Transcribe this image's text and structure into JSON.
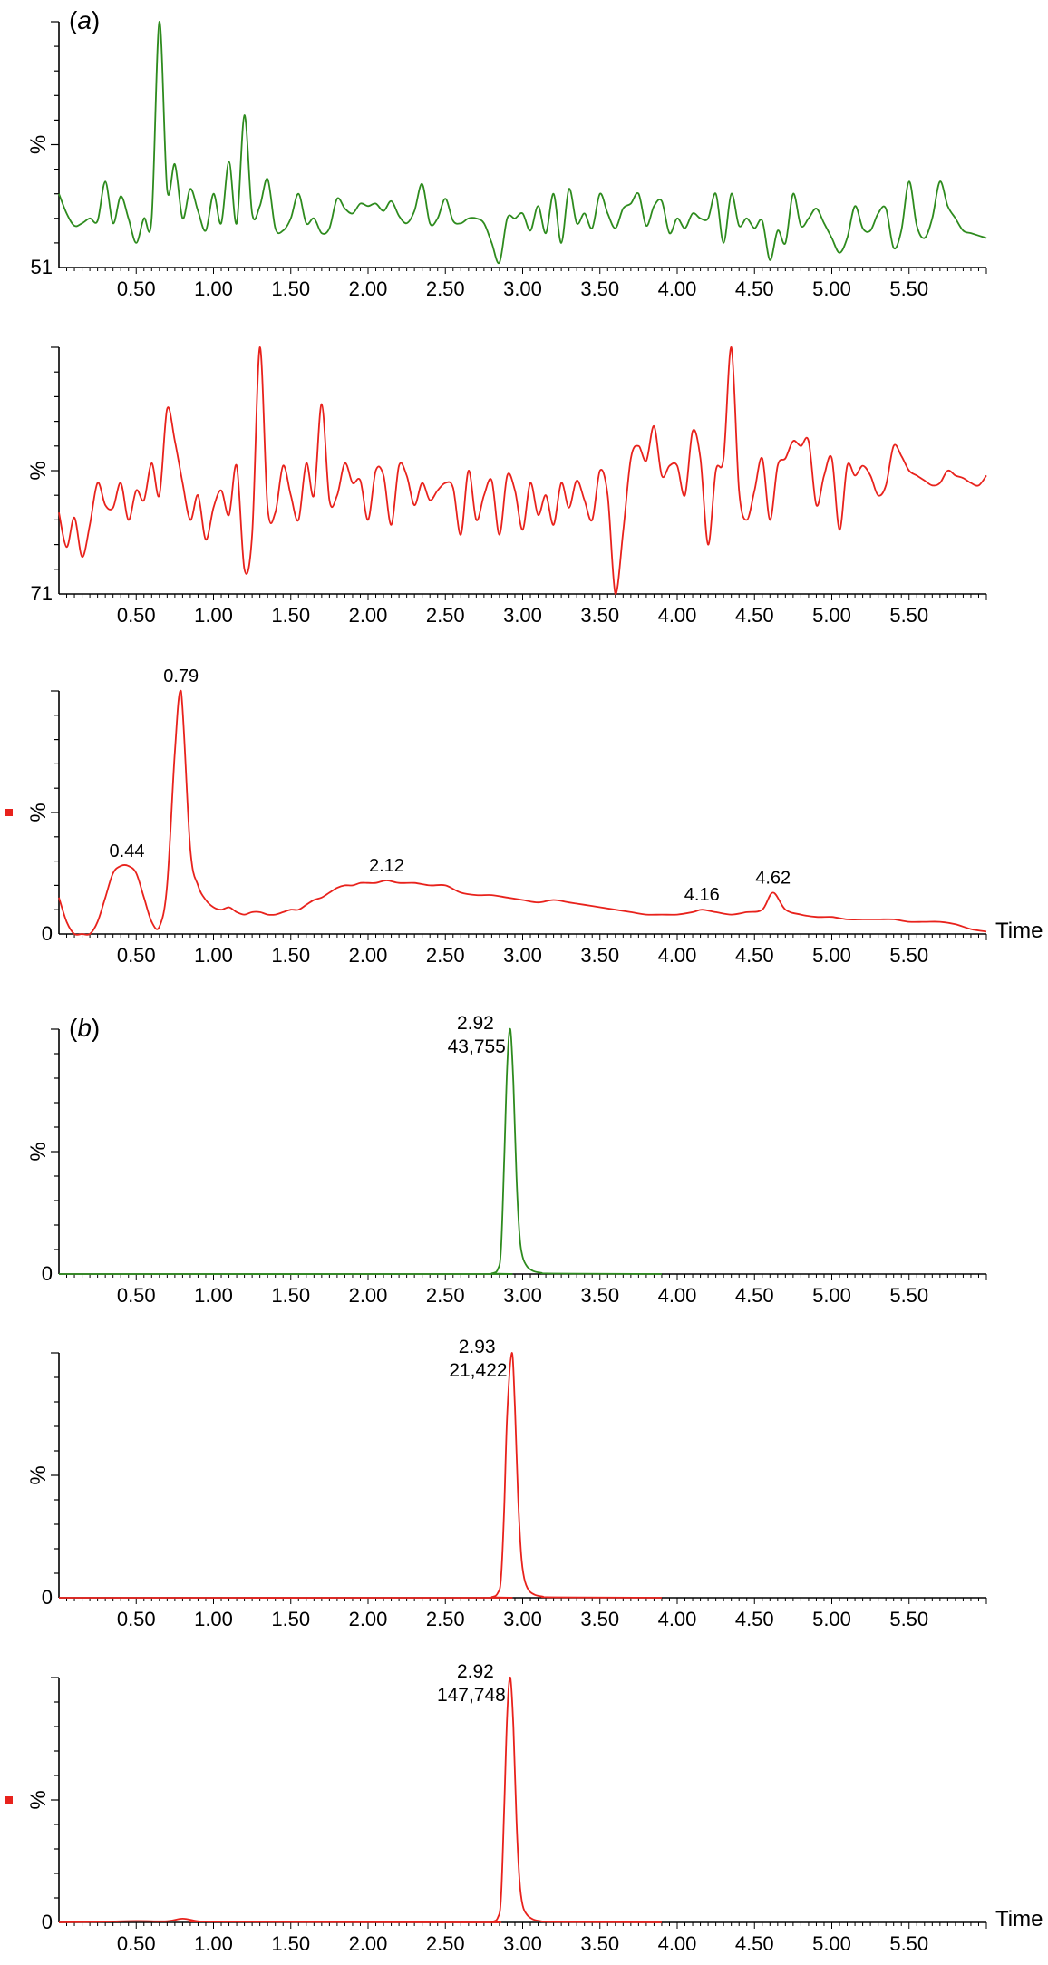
{
  "chart_data": [
    {
      "type": "line",
      "panel_label": "(a)",
      "panel_label_paren_open": "(",
      "panel_label_letter": "a",
      "panel_label_paren_close": ")",
      "color": "#2e8b1e",
      "ylabel": "%",
      "baseline_label": "51",
      "xlabel": "",
      "marker": false,
      "xlim": [
        0,
        6.0
      ],
      "ylim": [
        0,
        100
      ],
      "xticks": [
        "0.50",
        "1.00",
        "1.50",
        "2.00",
        "2.50",
        "3.00",
        "3.50",
        "4.00",
        "4.50",
        "5.00",
        "5.50"
      ],
      "x": [
        0.0,
        0.05,
        0.1,
        0.15,
        0.2,
        0.25,
        0.3,
        0.35,
        0.4,
        0.45,
        0.5,
        0.55,
        0.6,
        0.65,
        0.7,
        0.75,
        0.8,
        0.85,
        0.9,
        0.95,
        1.0,
        1.05,
        1.1,
        1.15,
        1.2,
        1.25,
        1.3,
        1.35,
        1.4,
        1.45,
        1.5,
        1.55,
        1.6,
        1.65,
        1.7,
        1.75,
        1.8,
        1.85,
        1.9,
        1.95,
        2.0,
        2.05,
        2.1,
        2.15,
        2.2,
        2.25,
        2.3,
        2.35,
        2.4,
        2.45,
        2.5,
        2.55,
        2.6,
        2.65,
        2.7,
        2.75,
        2.8,
        2.85,
        2.9,
        2.95,
        3.0,
        3.05,
        3.1,
        3.15,
        3.2,
        3.25,
        3.3,
        3.35,
        3.4,
        3.45,
        3.5,
        3.55,
        3.6,
        3.65,
        3.7,
        3.75,
        3.8,
        3.85,
        3.9,
        3.95,
        4.0,
        4.05,
        4.1,
        4.15,
        4.2,
        4.25,
        4.3,
        4.35,
        4.4,
        4.45,
        4.5,
        4.55,
        4.6,
        4.65,
        4.7,
        4.75,
        4.8,
        4.85,
        4.9,
        4.95,
        5.0,
        5.05,
        5.1,
        5.15,
        5.2,
        5.25,
        5.3,
        5.35,
        5.4,
        5.45,
        5.5,
        5.55,
        5.6,
        5.65,
        5.7,
        5.75,
        5.8,
        5.85,
        5.9,
        5.95,
        6.0
      ],
      "y": [
        30,
        22,
        17,
        18,
        20,
        19,
        35,
        18,
        29,
        20,
        10,
        20,
        20,
        100,
        32,
        42,
        20,
        32,
        23,
        15,
        30,
        18,
        43,
        18,
        62,
        22,
        25,
        36,
        16,
        15,
        20,
        30,
        18,
        20,
        14,
        16,
        28,
        24,
        22,
        26,
        25,
        26,
        23,
        27,
        21,
        18,
        23,
        34,
        18,
        20,
        28,
        19,
        18,
        20,
        20,
        18,
        10,
        2,
        20,
        20,
        22,
        15,
        25,
        14,
        30,
        10,
        32,
        18,
        22,
        16,
        30,
        22,
        16,
        24,
        26,
        30,
        17,
        25,
        27,
        14,
        20,
        16,
        22,
        20,
        20,
        30,
        10,
        30,
        17,
        20,
        16,
        19,
        3,
        15,
        10,
        30,
        17,
        20,
        24,
        18,
        12,
        6,
        12,
        25,
        16,
        15,
        22,
        24,
        8,
        15,
        35,
        17,
        12,
        20,
        35,
        25,
        20,
        15,
        14,
        13,
        12
      ]
    },
    {
      "type": "line",
      "panel_label": "",
      "color": "#e8221c",
      "ylabel": "%",
      "baseline_label": "71",
      "xlabel": "",
      "marker": false,
      "xlim": [
        0,
        6.0
      ],
      "ylim": [
        0,
        100
      ],
      "xticks": [
        "0.50",
        "1.00",
        "1.50",
        "2.00",
        "2.50",
        "3.00",
        "3.50",
        "4.00",
        "4.50",
        "5.00",
        "5.50"
      ],
      "x": [
        0.0,
        0.05,
        0.1,
        0.15,
        0.2,
        0.25,
        0.3,
        0.35,
        0.4,
        0.45,
        0.5,
        0.55,
        0.6,
        0.65,
        0.7,
        0.75,
        0.8,
        0.85,
        0.9,
        0.95,
        1.0,
        1.05,
        1.1,
        1.15,
        1.2,
        1.25,
        1.3,
        1.35,
        1.4,
        1.45,
        1.5,
        1.55,
        1.6,
        1.65,
        1.7,
        1.75,
        1.8,
        1.85,
        1.9,
        1.95,
        2.0,
        2.05,
        2.1,
        2.15,
        2.2,
        2.25,
        2.3,
        2.35,
        2.4,
        2.45,
        2.5,
        2.55,
        2.6,
        2.65,
        2.7,
        2.75,
        2.8,
        2.85,
        2.9,
        2.95,
        3.0,
        3.05,
        3.1,
        3.15,
        3.2,
        3.25,
        3.3,
        3.35,
        3.4,
        3.45,
        3.5,
        3.55,
        3.6,
        3.65,
        3.7,
        3.75,
        3.8,
        3.85,
        3.9,
        3.95,
        4.0,
        4.05,
        4.1,
        4.15,
        4.2,
        4.25,
        4.3,
        4.35,
        4.4,
        4.45,
        4.5,
        4.55,
        4.6,
        4.65,
        4.7,
        4.75,
        4.8,
        4.85,
        4.9,
        4.95,
        5.0,
        5.05,
        5.1,
        5.15,
        5.2,
        5.25,
        5.3,
        5.35,
        5.4,
        5.45,
        5.5,
        5.55,
        5.6,
        5.65,
        5.7,
        5.75,
        5.8,
        5.85,
        5.9,
        5.95,
        6.0
      ],
      "y": [
        33,
        19,
        31,
        15,
        28,
        45,
        36,
        35,
        45,
        30,
        42,
        38,
        53,
        40,
        75,
        62,
        45,
        30,
        40,
        22,
        35,
        42,
        32,
        52,
        10,
        24,
        100,
        35,
        33,
        52,
        40,
        30,
        53,
        40,
        77,
        38,
        40,
        53,
        45,
        46,
        30,
        50,
        48,
        28,
        52,
        48,
        36,
        45,
        38,
        42,
        45,
        43,
        24,
        50,
        30,
        40,
        46,
        24,
        48,
        42,
        26,
        45,
        32,
        40,
        28,
        45,
        35,
        46,
        38,
        30,
        50,
        40,
        0,
        25,
        55,
        60,
        54,
        68,
        48,
        52,
        52,
        40,
        66,
        55,
        20,
        50,
        55,
        100,
        42,
        30,
        42,
        55,
        30,
        52,
        55,
        62,
        60,
        62,
        36,
        48,
        55,
        26,
        52,
        48,
        52,
        48,
        40,
        44,
        60,
        56,
        50,
        48,
        46,
        44,
        45,
        50,
        48,
        47,
        45,
        44,
        48
      ]
    },
    {
      "type": "line",
      "panel_label": "",
      "color": "#e8221c",
      "ylabel": "%",
      "baseline_label": "0",
      "xlabel": "Time",
      "marker": true,
      "marker_color": "#e8221c",
      "xlim": [
        0,
        6.0
      ],
      "ylim": [
        0,
        100
      ],
      "xticks": [
        "0.50",
        "1.00",
        "1.50",
        "2.00",
        "2.50",
        "3.00",
        "3.50",
        "4.00",
        "4.50",
        "5.00",
        "5.50"
      ],
      "x": [
        0.0,
        0.05,
        0.1,
        0.15,
        0.2,
        0.25,
        0.3,
        0.35,
        0.4,
        0.45,
        0.5,
        0.55,
        0.6,
        0.65,
        0.7,
        0.75,
        0.79,
        0.85,
        0.9,
        0.95,
        1.0,
        1.05,
        1.1,
        1.15,
        1.2,
        1.25,
        1.3,
        1.35,
        1.4,
        1.45,
        1.5,
        1.55,
        1.6,
        1.65,
        1.7,
        1.75,
        1.8,
        1.85,
        1.9,
        1.95,
        2.0,
        2.05,
        2.12,
        2.2,
        2.3,
        2.4,
        2.5,
        2.6,
        2.7,
        2.8,
        2.9,
        3.0,
        3.1,
        3.2,
        3.3,
        3.4,
        3.5,
        3.6,
        3.7,
        3.8,
        3.9,
        4.0,
        4.1,
        4.16,
        4.25,
        4.35,
        4.45,
        4.55,
        4.62,
        4.7,
        4.8,
        4.9,
        5.0,
        5.1,
        5.2,
        5.3,
        5.4,
        5.5,
        5.6,
        5.7,
        5.8,
        5.9,
        6.0
      ],
      "y": [
        15,
        5,
        0,
        0,
        0,
        5,
        15,
        25,
        28,
        28,
        25,
        15,
        5,
        3,
        20,
        75,
        100,
        35,
        20,
        14,
        11,
        10,
        11,
        9,
        8,
        9,
        9,
        8,
        8,
        9,
        10,
        10,
        12,
        14,
        15,
        17,
        19,
        20,
        20,
        21,
        21,
        21,
        22,
        21,
        21,
        20,
        20,
        17,
        16,
        16,
        15,
        14,
        13,
        14,
        13,
        12,
        11,
        10,
        9,
        8,
        8,
        8,
        9,
        10,
        9,
        8,
        9,
        10,
        17,
        10,
        8,
        7,
        7,
        6,
        6,
        6,
        6,
        5,
        5,
        5,
        4,
        2,
        1
      ],
      "peak_labels": [
        {
          "x": 0.44,
          "y": 28,
          "text": "0.44"
        },
        {
          "x": 0.79,
          "y": 100,
          "text": "0.79"
        },
        {
          "x": 2.12,
          "y": 22,
          "text": "2.12"
        },
        {
          "x": 4.16,
          "y": 10,
          "text": "4.16"
        },
        {
          "x": 4.62,
          "y": 17,
          "text": "4.62"
        }
      ]
    },
    {
      "type": "line",
      "panel_label": "(b)",
      "panel_label_paren_open": "(",
      "panel_label_letter": "b",
      "panel_label_paren_close": ")",
      "color": "#2e8b1e",
      "ylabel": "%",
      "baseline_label": "0",
      "xlabel": "",
      "marker": false,
      "xlim": [
        0,
        6.0
      ],
      "ylim": [
        0,
        100
      ],
      "xticks": [
        "0.50",
        "1.00",
        "1.50",
        "2.00",
        "2.50",
        "3.00",
        "3.50",
        "4.00",
        "4.50",
        "5.00",
        "5.50"
      ],
      "x": [
        0.0,
        2.7,
        2.8,
        2.84,
        2.86,
        2.88,
        2.9,
        2.92,
        2.94,
        2.96,
        2.98,
        3.0,
        3.03,
        3.07,
        3.12,
        3.2,
        3.9
      ],
      "y": [
        0,
        0,
        0.3,
        2,
        10,
        45,
        85,
        100,
        78,
        40,
        16,
        7,
        3,
        1.2,
        0.5,
        0.2,
        0
      ],
      "peak_labels": [
        {
          "x": 2.92,
          "y": 100,
          "text": "2.92",
          "area": "43,755"
        }
      ]
    },
    {
      "type": "line",
      "panel_label": "",
      "color": "#e8221c",
      "ylabel": "%",
      "baseline_label": "0",
      "xlabel": "",
      "marker": false,
      "xlim": [
        0,
        6.0
      ],
      "ylim": [
        0,
        100
      ],
      "xticks": [
        "0.50",
        "1.00",
        "1.50",
        "2.00",
        "2.50",
        "3.00",
        "3.50",
        "4.00",
        "4.50",
        "5.00",
        "5.50"
      ],
      "x": [
        0.0,
        2.7,
        2.8,
        2.84,
        2.86,
        2.88,
        2.9,
        2.93,
        2.95,
        2.97,
        2.99,
        3.01,
        3.04,
        3.08,
        3.13,
        3.2,
        3.9
      ],
      "y": [
        0,
        0,
        0.3,
        2,
        8,
        35,
        75,
        100,
        78,
        42,
        18,
        8,
        3,
        1.2,
        0.5,
        0.2,
        0
      ],
      "peak_labels": [
        {
          "x": 2.93,
          "y": 100,
          "text": "2.93",
          "area": "21,422"
        }
      ]
    },
    {
      "type": "line",
      "panel_label": "",
      "color": "#e8221c",
      "ylabel": "%",
      "baseline_label": "0",
      "xlabel": "Time",
      "marker": true,
      "marker_color": "#e8221c",
      "xlim": [
        0,
        6.0
      ],
      "ylim": [
        0,
        100
      ],
      "xticks": [
        "0.50",
        "1.00",
        "1.50",
        "2.00",
        "2.50",
        "3.00",
        "3.50",
        "4.00",
        "4.50",
        "5.00",
        "5.50"
      ],
      "x": [
        0.0,
        0.3,
        0.5,
        0.7,
        0.8,
        0.9,
        1.0,
        2.7,
        2.8,
        2.84,
        2.86,
        2.88,
        2.9,
        2.92,
        2.94,
        2.96,
        2.98,
        3.0,
        3.03,
        3.07,
        3.12,
        3.2,
        3.9
      ],
      "y": [
        0,
        0.3,
        0.6,
        0.5,
        1.5,
        0.5,
        0.3,
        0,
        0.3,
        2,
        10,
        45,
        85,
        100,
        80,
        42,
        17,
        7,
        3,
        1.2,
        0.5,
        0.2,
        0
      ],
      "peak_labels": [
        {
          "x": 2.92,
          "y": 100,
          "text": "2.92",
          "area": "147,748"
        }
      ]
    }
  ]
}
